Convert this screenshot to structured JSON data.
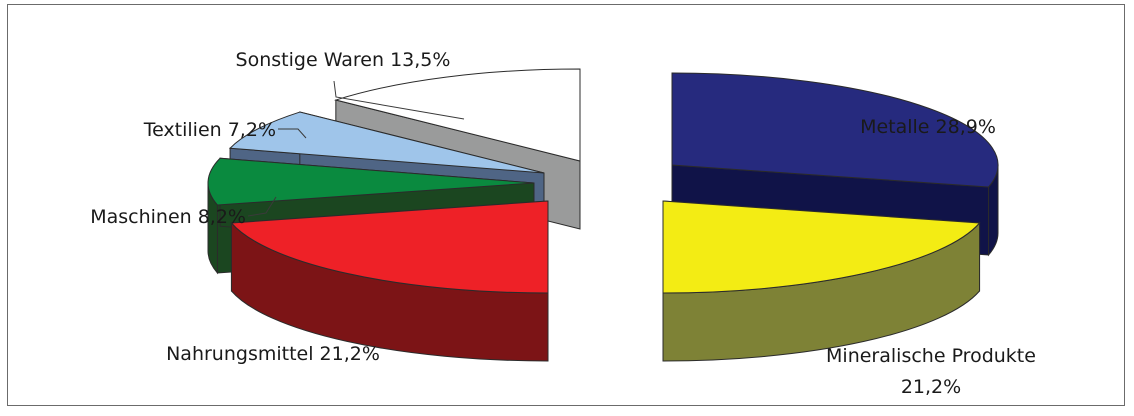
{
  "chart_data": {
    "type": "pie",
    "style": "3d-exploded",
    "slices": [
      {
        "label": "Metalle 28,9%",
        "value": 28.9,
        "top_color": "#262a7e",
        "side_color": "#101348"
      },
      {
        "label": "Mineralische Produkte",
        "label_line2": "21,2%",
        "value": 21.2,
        "top_color": "#f3ec14",
        "side_color": "#7e8236"
      },
      {
        "label": "Nahrungsmittel 21,2%",
        "value": 21.2,
        "top_color": "#ee2127",
        "side_color": "#7c1416"
      },
      {
        "label": "Maschinen  8,2%",
        "value": 8.2,
        "top_color": "#0a8a3f",
        "side_color": "#1b4620"
      },
      {
        "label": "Textilien 7,2%",
        "value": 7.2,
        "top_color": "#9fc5ea",
        "side_color": "#4f6585"
      },
      {
        "label": "Sonstige Waren 13,5%",
        "value": 13.5,
        "top_color": "#ffffff",
        "side_color": "#9a9b9b"
      }
    ],
    "legend": "none",
    "title": ""
  }
}
